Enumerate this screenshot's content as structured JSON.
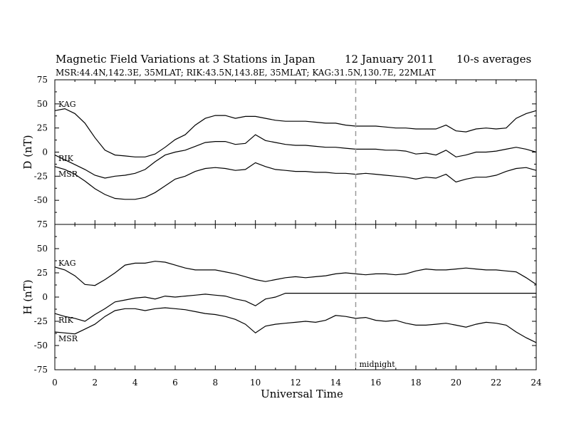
{
  "header": {
    "title": "Magnetic Field Variations at 3 Stations in Japan",
    "date": "12 January 2011",
    "averaging": "10-s averages",
    "subtitle": "MSR:44.4N,142.3E, 35MLAT;  RIK:43.5N,143.8E, 35MLAT;  KAG:31.5N,130.7E, 22MLAT"
  },
  "chart_data": {
    "type": "line",
    "xlabel": "Universal Time",
    "xlim": [
      0,
      24
    ],
    "xticks": [
      "0",
      "2",
      "4",
      "6",
      "8",
      "10",
      "12",
      "14",
      "16",
      "18",
      "20",
      "22",
      "24"
    ],
    "grid": false,
    "annotation": {
      "label": "midnight",
      "x": 15,
      "style": "dashed vertical line"
    },
    "panels": [
      {
        "id": "D",
        "ylabel": "D (nT)",
        "ylim": [
          -75,
          75
        ],
        "yticks": [
          "75",
          "50",
          "25",
          "0",
          "-25",
          "-50",
          "-75"
        ],
        "series": [
          {
            "name": "KAG",
            "x": [
              0,
              0.5,
              1,
              1.5,
              2,
              2.5,
              3,
              3.5,
              4,
              4.5,
              5,
              5.5,
              6,
              6.5,
              7,
              7.5,
              8,
              8.5,
              9,
              9.5,
              10,
              10.5,
              11,
              11.5,
              12,
              12.5,
              13,
              13.5,
              14,
              14.5,
              15,
              15.5,
              16,
              16.5,
              17,
              17.5,
              18,
              18.5,
              19,
              19.5,
              20,
              20.5,
              21,
              21.5,
              22,
              22.5,
              23,
              23.5,
              24
            ],
            "y": [
              43,
              45,
              40,
              30,
              15,
              2,
              -3,
              -4,
              -5,
              -5,
              -2,
              5,
              13,
              18,
              28,
              35,
              38,
              38,
              35,
              37,
              37,
              35,
              33,
              32,
              32,
              32,
              31,
              30,
              30,
              28,
              27,
              27,
              27,
              26,
              25,
              25,
              24,
              24,
              24,
              28,
              22,
              21,
              24,
              25,
              24,
              25,
              35,
              40,
              43
            ]
          },
          {
            "name": "RIK",
            "x": [
              0,
              0.5,
              1,
              1.5,
              2,
              2.5,
              3,
              3.5,
              4,
              4.5,
              5,
              5.5,
              6,
              6.5,
              7,
              7.5,
              8,
              8.5,
              9,
              9.5,
              10,
              10.5,
              11,
              11.5,
              12,
              12.5,
              13,
              13.5,
              14,
              14.5,
              15,
              15.5,
              16,
              16.5,
              17,
              17.5,
              18,
              18.5,
              19,
              19.5,
              20,
              20.5,
              21,
              21.5,
              22,
              22.5,
              23,
              23.5,
              24
            ],
            "y": [
              -3,
              -8,
              -13,
              -18,
              -24,
              -27,
              -25,
              -24,
              -22,
              -18,
              -10,
              -3,
              0,
              2,
              6,
              10,
              11,
              11,
              8,
              9,
              18,
              12,
              10,
              8,
              7,
              7,
              6,
              5,
              5,
              4,
              3,
              3,
              3,
              2,
              2,
              1,
              -2,
              -1,
              -3,
              2,
              -5,
              -3,
              0,
              0,
              1,
              3,
              5,
              3,
              0
            ]
          },
          {
            "name": "MSR",
            "x": [
              0,
              0.5,
              1,
              1.5,
              2,
              2.5,
              3,
              3.5,
              4,
              4.5,
              5,
              5.5,
              6,
              6.5,
              7,
              7.5,
              8,
              8.5,
              9,
              9.5,
              10,
              10.5,
              11,
              11.5,
              12,
              12.5,
              13,
              13.5,
              14,
              14.5,
              15,
              15.5,
              16,
              16.5,
              17,
              17.5,
              18,
              18.5,
              19,
              19.5,
              20,
              20.5,
              21,
              21.5,
              22,
              22.5,
              23,
              23.5,
              24
            ],
            "y": [
              -15,
              -18,
              -23,
              -30,
              -38,
              -44,
              -48,
              -49,
              -49,
              -47,
              -42,
              -35,
              -28,
              -25,
              -20,
              -17,
              -16,
              -17,
              -19,
              -18,
              -11,
              -15,
              -18,
              -19,
              -20,
              -20,
              -21,
              -21,
              -22,
              -22,
              -23,
              -22,
              -23,
              -24,
              -25,
              -26,
              -28,
              -26,
              -27,
              -23,
              -31,
              -28,
              -26,
              -26,
              -24,
              -20,
              -17,
              -16,
              -19
            ]
          }
        ]
      },
      {
        "id": "H",
        "ylabel": "H (nT)",
        "ylim": [
          -75,
          75
        ],
        "yticks": [
          "75",
          "50",
          "25",
          "0",
          "-25",
          "-50",
          "-75"
        ],
        "series": [
          {
            "name": "KAG",
            "x": [
              0,
              0.5,
              1,
              1.5,
              2,
              2.5,
              3,
              3.5,
              4,
              4.5,
              5,
              5.5,
              6,
              6.5,
              7,
              7.5,
              8,
              8.5,
              9,
              9.5,
              10,
              10.5,
              11,
              11.5,
              12,
              12.5,
              13,
              13.5,
              14,
              14.5,
              15,
              15.5,
              16,
              16.5,
              17,
              17.5,
              18,
              18.5,
              19,
              19.5,
              20,
              20.5,
              21,
              21.5,
              22,
              22.5,
              23,
              23.5,
              24
            ],
            "y": [
              31,
              28,
              22,
              13,
              12,
              18,
              25,
              33,
              35,
              35,
              37,
              36,
              33,
              30,
              28,
              28,
              28,
              26,
              24,
              21,
              18,
              16,
              18,
              20,
              21,
              20,
              21,
              22,
              24,
              25,
              24,
              23,
              24,
              24,
              23,
              24,
              27,
              29,
              28,
              28,
              29,
              30,
              29,
              28,
              28,
              27,
              26,
              20,
              13
            ]
          },
          {
            "name": "RIK",
            "x": [
              0,
              0.5,
              1,
              1.5,
              2,
              2.5,
              3,
              3.5,
              4,
              4.5,
              5,
              5.5,
              6,
              6.5,
              7,
              7.5,
              8,
              8.5,
              9,
              9.5,
              10,
              10.5,
              11,
              11.5,
              12,
              12.5,
              13,
              13.5,
              14,
              14.5,
              15,
              15.5,
              16,
              16.5,
              17,
              17.5,
              18,
              18.5,
              19,
              19.5,
              20,
              20.5,
              21,
              21.5,
              22,
              22.5,
              23,
              23.5,
              24
            ],
            "y": [
              -17,
              -20,
              -22,
              -25,
              -18,
              -12,
              -5,
              -3,
              -1,
              0,
              -2,
              1,
              0,
              1,
              2,
              3,
              2,
              1,
              -2,
              -4,
              -9,
              -2,
              0,
              4,
              4,
              4,
              4,
              4,
              4,
              4,
              4,
              4,
              4,
              4,
              4,
              4,
              4,
              4,
              4,
              4,
              4,
              4,
              4,
              4,
              4,
              4,
              4,
              4,
              4
            ]
          },
          {
            "name": "MSR",
            "x": [
              0,
              0.5,
              1,
              1.5,
              2,
              2.5,
              3,
              3.5,
              4,
              4.5,
              5,
              5.5,
              6,
              6.5,
              7,
              7.5,
              8,
              8.5,
              9,
              9.5,
              10,
              10.5,
              11,
              11.5,
              12,
              12.5,
              13,
              13.5,
              14,
              14.5,
              15,
              15.5,
              16,
              16.5,
              17,
              17.5,
              18,
              18.5,
              19,
              19.5,
              20,
              20.5,
              21,
              21.5,
              22,
              22.5,
              23,
              23.5,
              24
            ],
            "y": [
              -36,
              -37,
              -38,
              -33,
              -28,
              -20,
              -14,
              -12,
              -12,
              -14,
              -12,
              -11,
              -12,
              -13,
              -15,
              -17,
              -18,
              -20,
              -23,
              -28,
              -37,
              -30,
              -28,
              -27,
              -26,
              -25,
              -26,
              -24,
              -19,
              -20,
              -22,
              -21,
              -24,
              -25,
              -24,
              -27,
              -29,
              -29,
              -28,
              -27,
              -29,
              -31,
              -28,
              -26,
              -27,
              -29,
              -36,
              -42,
              -47
            ]
          }
        ]
      }
    ]
  }
}
